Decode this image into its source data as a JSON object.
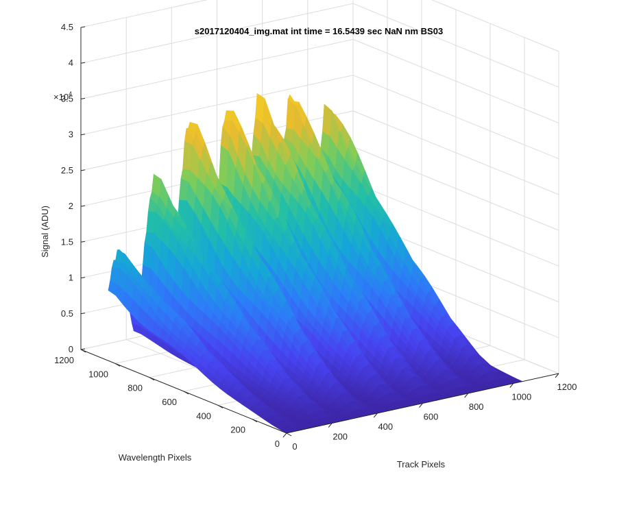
{
  "chart_data": {
    "type": "surface",
    "title": "s2017120404_img.mat int time = 16.5439 sec  NaN nm BS03",
    "xlabel": "Track Pixels",
    "ylabel": "Wavelength Pixels",
    "zlabel": "Signal (ADU)",
    "z_exponent_label": "×10",
    "z_exponent_power": "4",
    "x_ticks": [
      "0",
      "200",
      "400",
      "600",
      "800",
      "1000",
      "1200"
    ],
    "y_ticks": [
      "0",
      "200",
      "400",
      "600",
      "800",
      "1000",
      "1200"
    ],
    "z_ticks": [
      "0",
      "0.5",
      "1",
      "1.5",
      "2",
      "2.5",
      "3",
      "3.5",
      "4",
      "4.5"
    ],
    "xlim": [
      0,
      1200
    ],
    "ylim": [
      0,
      1200
    ],
    "zlim": [
      0,
      45000
    ],
    "grid": true,
    "colormap": [
      "#3e26a8",
      "#4743f0",
      "#2d7bf8",
      "#16a6d8",
      "#23bfa6",
      "#7ecc5a",
      "#e5bb32",
      "#f9d21f"
    ],
    "peaks": [
      {
        "track_center": 40,
        "peak_signal": 16000
      },
      {
        "track_center": 200,
        "peak_signal": 25000
      },
      {
        "track_center": 350,
        "peak_signal": 32000
      },
      {
        "track_center": 520,
        "peak_signal": 32500
      },
      {
        "track_center": 660,
        "peak_signal": 33000
      },
      {
        "track_center": 800,
        "peak_signal": 33000
      },
      {
        "track_center": 960,
        "peak_signal": 30000
      }
    ]
  }
}
